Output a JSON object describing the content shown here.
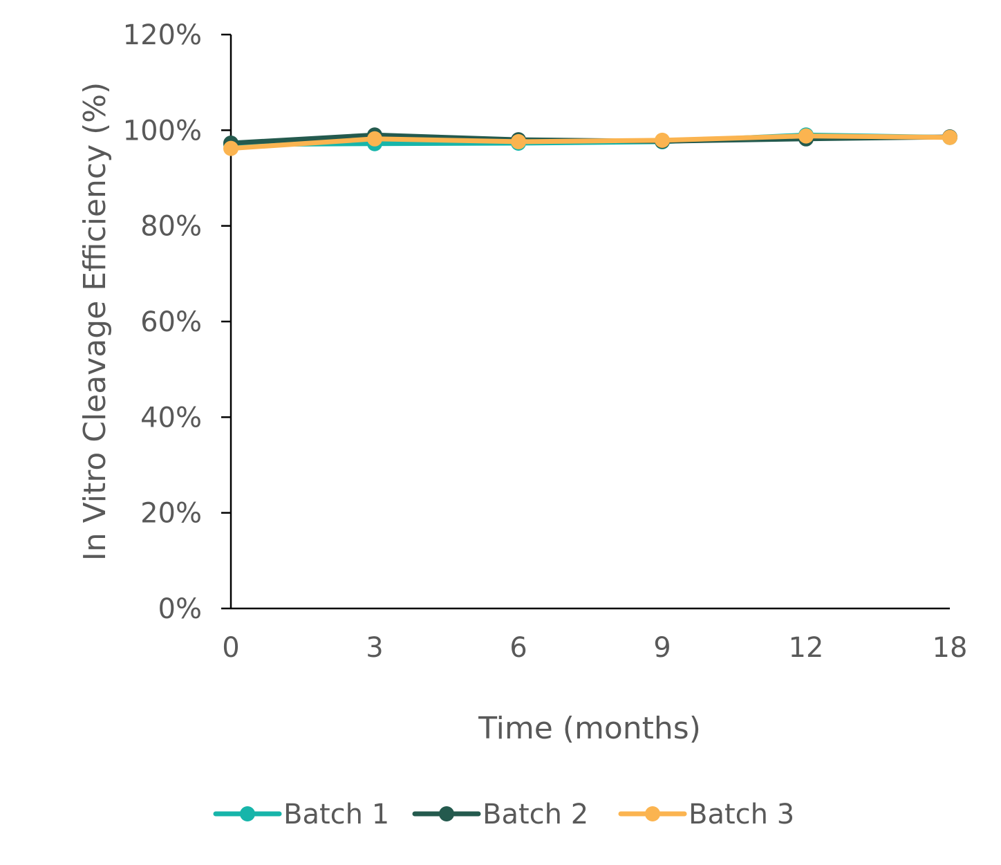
{
  "chart_data": {
    "type": "line",
    "title": "",
    "xlabel": "Time (months)",
    "ylabel": "In Vitro Cleavage Efficiency (%)",
    "categories": [
      "0",
      "3",
      "6",
      "9",
      "12",
      "18"
    ],
    "ylim": [
      0,
      120
    ],
    "yticks": [
      "0%",
      "20%",
      "40%",
      "60%",
      "80%",
      "100%",
      "120%"
    ],
    "grid": false,
    "legend_position": "bottom",
    "series": [
      {
        "name": "Batch 1",
        "color": "#17B5AA",
        "values": [
          97.0,
          97.2,
          97.3,
          97.6,
          99.0,
          98.5
        ]
      },
      {
        "name": "Batch 2",
        "color": "#245A4E",
        "values": [
          97.3,
          99.0,
          98.0,
          97.7,
          98.2,
          98.6
        ]
      },
      {
        "name": "Batch 3",
        "color": "#FBB450",
        "values": [
          96.2,
          98.2,
          97.6,
          97.9,
          98.8,
          98.5
        ]
      }
    ]
  }
}
